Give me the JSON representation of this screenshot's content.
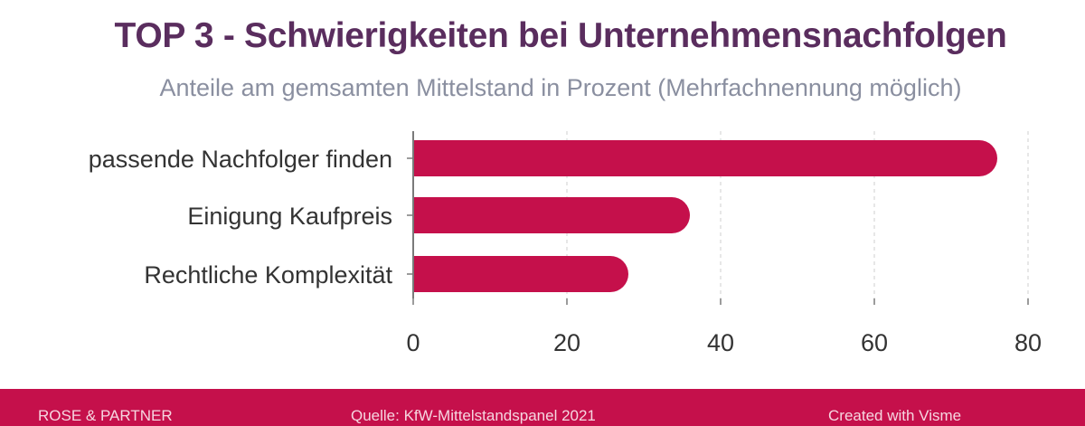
{
  "header": {
    "title": "TOP 3 - Schwierigkeiten bei Unternehmensnachfolgen",
    "subtitle": "Anteile am gemsamten Mittelstand in Prozent (Mehrfachnennung möglich)"
  },
  "chart_data": {
    "type": "bar",
    "orientation": "horizontal",
    "categories": [
      "passende Nachfolger finden",
      "Einigung Kaufpreis",
      "Rechtliche Komplexität"
    ],
    "values": [
      76,
      36,
      28
    ],
    "xlim": [
      0,
      85
    ],
    "xticks": [
      0,
      20,
      40,
      60,
      80
    ],
    "grid": true,
    "bar_color": "#c5104b"
  },
  "footer": {
    "left": "ROSE & PARTNER",
    "middle": "Quelle: KfW-Mittelstandspanel 2021",
    "right": "Created with Visme"
  },
  "colors": {
    "title": "#5a2d5e",
    "subtitle": "#8a8fa0",
    "accent": "#c5104b"
  }
}
